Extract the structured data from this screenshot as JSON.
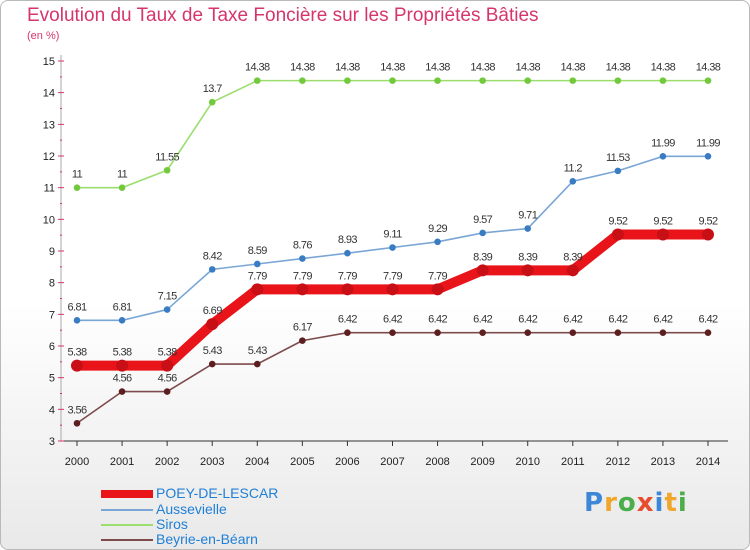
{
  "title": "Evolution du Taux de Taxe Foncière sur les Propriétés Bâties",
  "subtitle": "(en %)",
  "logo": {
    "letters": [
      "P",
      "r",
      "o",
      "x",
      "i",
      "t",
      "i"
    ],
    "colors": [
      "#3d87d8",
      "#f0a72b",
      "#4cae4a",
      "#e64c2d",
      "#3d87d8",
      "#f0a72b",
      "#4cae4a"
    ]
  },
  "chart_data": {
    "type": "line",
    "title": "Evolution du Taux de Taxe Foncière sur les Propriétés Bâties",
    "ylabel": "(en %)",
    "xlabel": "",
    "ylim": [
      3,
      15
    ],
    "yticks": [
      3,
      4,
      5,
      6,
      7,
      8,
      9,
      10,
      11,
      12,
      13,
      14,
      15
    ],
    "categories": [
      "2000",
      "2001",
      "2002",
      "2003",
      "2004",
      "2005",
      "2006",
      "2007",
      "2008",
      "2009",
      "2010",
      "2011",
      "2012",
      "2013",
      "2014"
    ],
    "series": [
      {
        "name": "POEY-DE-LESCAR",
        "values": [
          5.38,
          5.38,
          5.38,
          6.69,
          7.79,
          7.79,
          7.79,
          7.79,
          7.79,
          8.39,
          8.39,
          8.39,
          9.52,
          9.52,
          9.52
        ],
        "labels": [
          "5.38",
          "5.38",
          "5.38",
          "6.69",
          "7.79",
          "7.79",
          "7.79",
          "7.79",
          "7.79",
          "8.39",
          "8.39",
          "8.39",
          "9.52",
          "9.52",
          "9.52"
        ],
        "color": "#e8141a",
        "marker": "#c80f16",
        "emphasis": true
      },
      {
        "name": "Aussevielle",
        "values": [
          6.81,
          6.81,
          7.15,
          8.42,
          8.59,
          8.76,
          8.93,
          9.11,
          9.29,
          9.57,
          9.71,
          11.2,
          11.53,
          11.99,
          11.99
        ],
        "labels": [
          "6.81",
          "6.81",
          "7.15",
          "8.42",
          "8.59",
          "8.76",
          "8.93",
          "9.11",
          "9.29",
          "9.57",
          "9.71",
          "11.2",
          "11.53",
          "11.99",
          "11.99"
        ],
        "color": "#7aa6d6",
        "marker": "#3a7cc4",
        "emphasis": false
      },
      {
        "name": "Siros",
        "values": [
          11,
          11,
          11.55,
          13.7,
          14.38,
          14.38,
          14.38,
          14.38,
          14.38,
          14.38,
          14.38,
          14.38,
          14.38,
          14.38,
          14.38
        ],
        "labels": [
          "11",
          "11",
          "11.55",
          "13.7",
          "14.38",
          "14.38",
          "14.38",
          "14.38",
          "14.38",
          "14.38",
          "14.38",
          "14.38",
          "14.38",
          "14.38",
          "14.38"
        ],
        "color": "#9bde6e",
        "marker": "#72c93c",
        "emphasis": false
      },
      {
        "name": "Beyrie-en-Béarn",
        "values": [
          3.56,
          4.56,
          4.56,
          5.43,
          5.43,
          6.17,
          6.42,
          6.42,
          6.42,
          6.42,
          6.42,
          6.42,
          6.42,
          6.42,
          6.42
        ],
        "labels": [
          "3.56",
          "4.56",
          "4.56",
          "5.43",
          "5.43",
          "6.17",
          "6.42",
          "6.42",
          "6.42",
          "6.42",
          "6.42",
          "6.42",
          "6.42",
          "6.42",
          "6.42"
        ],
        "color": "#7d4b4b",
        "marker": "#5c1e1e",
        "emphasis": false
      }
    ],
    "grid": false,
    "legend_position": "bottom-left"
  }
}
